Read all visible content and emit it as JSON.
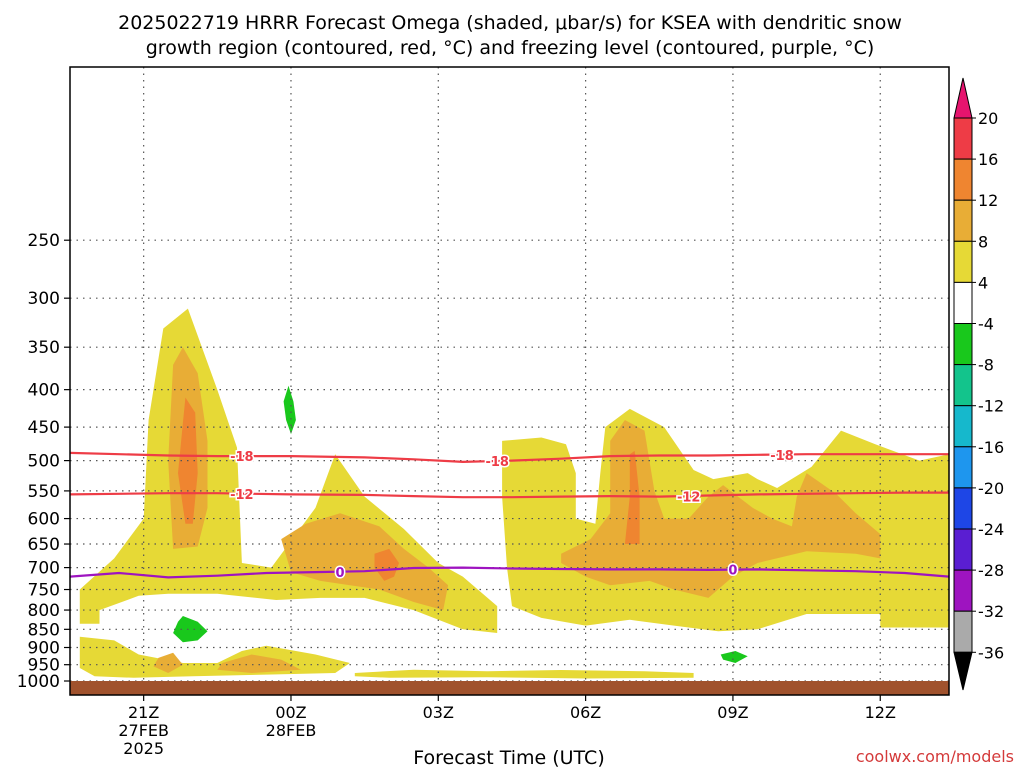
{
  "chart_data": {
    "type": "heatmap",
    "title_lines": [
      "2025022719 HRRR Forecast Omega (shaded, μbar/s) for KSEA with dendritic snow",
      "growth region (contoured, red, °C) and freezing level (contoured, purple, °C)"
    ],
    "xlabel": "Forecast Time (UTC)",
    "ylabel": "",
    "credit": "coolwx.com/models",
    "x_domain_hours": [
      -4.5,
      13.4
    ],
    "y_domain_hpa": [
      145,
      1045
    ],
    "y_scale": "log",
    "grid": true,
    "x_ticks": [
      {
        "hour": -3,
        "lines": [
          "21Z",
          "27FEB",
          "2025"
        ]
      },
      {
        "hour": 0,
        "lines": [
          "00Z",
          "28FEB"
        ]
      },
      {
        "hour": 3,
        "lines": [
          "03Z"
        ]
      },
      {
        "hour": 6,
        "lines": [
          "06Z"
        ]
      },
      {
        "hour": 9,
        "lines": [
          "09Z"
        ]
      },
      {
        "hour": 12,
        "lines": [
          "12Z"
        ]
      }
    ],
    "y_ticks": [
      250,
      300,
      350,
      400,
      450,
      500,
      550,
      600,
      650,
      700,
      750,
      800,
      850,
      900,
      950,
      1000
    ],
    "surface_color": "#a0522d",
    "colorbar": {
      "labels": [
        "20",
        "16",
        "12",
        "8",
        "4",
        "-4",
        "-8",
        "-12",
        "-16",
        "-20",
        "-24",
        "-28",
        "-32",
        "-36"
      ],
      "bins": [
        {
          "color": "#ee3c46"
        },
        {
          "color": "#ef8530"
        },
        {
          "color": "#e8ad36"
        },
        {
          "color": "#e6d936"
        },
        {
          "color": "#ffffff"
        },
        {
          "color": "#19c81c"
        },
        {
          "color": "#13c48c"
        },
        {
          "color": "#16b8cc"
        },
        {
          "color": "#1e96ee"
        },
        {
          "color": "#1e46e6"
        },
        {
          "color": "#5a1ed2"
        },
        {
          "color": "#9e14c0"
        },
        {
          "color": "#aaaaaa"
        }
      ],
      "top_arrow_color": "#e6146e",
      "bottom_arrow_color": "#000000"
    },
    "omega_regions": [
      {
        "color": "#e6d936",
        "points": [
          [
            -2.9,
            440
          ],
          [
            -2.6,
            330
          ],
          [
            -2.1,
            310
          ],
          [
            -1.5,
            400
          ],
          [
            -1.1,
            480
          ],
          [
            -1.0,
            690
          ],
          [
            -0.4,
            700
          ],
          [
            0.5,
            580
          ],
          [
            0.9,
            490
          ],
          [
            1.5,
            560
          ],
          [
            2.3,
            620
          ],
          [
            3.0,
            690
          ],
          [
            3.5,
            720
          ],
          [
            4.2,
            790
          ],
          [
            4.2,
            860
          ],
          [
            3.5,
            850
          ],
          [
            2.5,
            800
          ],
          [
            1.5,
            770
          ],
          [
            0.6,
            770
          ],
          [
            -0.3,
            775
          ],
          [
            -1.5,
            760
          ],
          [
            -2.5,
            760
          ],
          [
            -3.1,
            765
          ],
          [
            -3.9,
            800
          ],
          [
            -3.9,
            835
          ],
          [
            -4.3,
            835
          ],
          [
            -4.3,
            750
          ],
          [
            -3.6,
            680
          ],
          [
            -3.0,
            600
          ]
        ]
      },
      {
        "color": "#e6d936",
        "points": [
          [
            -4.3,
            870
          ],
          [
            -3.6,
            880
          ],
          [
            -3.1,
            920
          ],
          [
            -2.2,
            945
          ],
          [
            -1.5,
            945
          ],
          [
            -1.0,
            910
          ],
          [
            -0.5,
            895
          ],
          [
            0.5,
            920
          ],
          [
            1.2,
            945
          ],
          [
            0.9,
            975
          ],
          [
            -0.5,
            980
          ],
          [
            -2.0,
            985
          ],
          [
            -3.2,
            990
          ],
          [
            -4.0,
            985
          ],
          [
            -4.3,
            960
          ]
        ]
      },
      {
        "color": "#e6d936",
        "points": [
          [
            1.3,
            975
          ],
          [
            2.5,
            965
          ],
          [
            4.0,
            970
          ],
          [
            5.5,
            966
          ],
          [
            7.2,
            970
          ],
          [
            8.2,
            975
          ],
          [
            8.2,
            990
          ],
          [
            6.0,
            992
          ],
          [
            4.0,
            988
          ],
          [
            2.0,
            990
          ],
          [
            1.3,
            985
          ]
        ]
      },
      {
        "color": "#e6d936",
        "points": [
          [
            4.3,
            470
          ],
          [
            5.1,
            465
          ],
          [
            5.6,
            475
          ],
          [
            5.8,
            520
          ],
          [
            5.8,
            600
          ],
          [
            6.2,
            610
          ],
          [
            6.3,
            520
          ],
          [
            6.4,
            450
          ],
          [
            6.9,
            425
          ],
          [
            7.6,
            450
          ],
          [
            8.2,
            515
          ],
          [
            8.6,
            530
          ],
          [
            9.3,
            520
          ],
          [
            9.5,
            530
          ],
          [
            9.9,
            545
          ],
          [
            10.6,
            510
          ],
          [
            11.2,
            455
          ],
          [
            11.9,
            475
          ],
          [
            12.8,
            500
          ],
          [
            13.4,
            490
          ],
          [
            13.4,
            845
          ],
          [
            12.0,
            845
          ],
          [
            12.0,
            810
          ],
          [
            10.5,
            810
          ],
          [
            9.5,
            850
          ],
          [
            8.7,
            855
          ],
          [
            7.8,
            840
          ],
          [
            6.9,
            825
          ],
          [
            6.0,
            840
          ],
          [
            5.1,
            820
          ],
          [
            4.5,
            790
          ],
          [
            4.4,
            700
          ],
          [
            4.3,
            560
          ]
        ]
      },
      {
        "color": "#e8ad36",
        "points": [
          [
            -2.4,
            660
          ],
          [
            -2.5,
            500
          ],
          [
            -2.4,
            370
          ],
          [
            -2.2,
            350
          ],
          [
            -1.9,
            380
          ],
          [
            -1.7,
            470
          ],
          [
            -1.7,
            580
          ],
          [
            -1.9,
            655
          ]
        ]
      },
      {
        "color": "#e8ad36",
        "points": [
          [
            -0.2,
            640
          ],
          [
            0.3,
            610
          ],
          [
            1.0,
            590
          ],
          [
            1.8,
            615
          ],
          [
            2.3,
            660
          ],
          [
            2.8,
            700
          ],
          [
            3.2,
            740
          ],
          [
            3.1,
            800
          ],
          [
            2.5,
            780
          ],
          [
            1.8,
            750
          ],
          [
            1.2,
            740
          ],
          [
            0.6,
            730
          ],
          [
            0.0,
            710
          ]
        ]
      },
      {
        "color": "#e8ad36",
        "points": [
          [
            -2.7,
            930
          ],
          [
            -2.4,
            915
          ],
          [
            -2.2,
            950
          ],
          [
            -2.5,
            975
          ],
          [
            -2.8,
            955
          ]
        ]
      },
      {
        "color": "#e8ad36",
        "points": [
          [
            -1.4,
            945
          ],
          [
            -0.8,
            920
          ],
          [
            -0.2,
            935
          ],
          [
            0.2,
            965
          ],
          [
            -0.8,
            975
          ],
          [
            -1.5,
            965
          ]
        ]
      },
      {
        "color": "#e8ad36",
        "points": [
          [
            5.5,
            670
          ],
          [
            6.1,
            640
          ],
          [
            6.5,
            590
          ],
          [
            6.5,
            470
          ],
          [
            6.8,
            440
          ],
          [
            7.2,
            455
          ],
          [
            7.4,
            550
          ],
          [
            7.6,
            600
          ],
          [
            8.1,
            600
          ],
          [
            8.5,
            560
          ],
          [
            8.8,
            540
          ],
          [
            9.4,
            580
          ],
          [
            9.8,
            600
          ],
          [
            10.2,
            615
          ],
          [
            10.3,
            560
          ],
          [
            10.5,
            520
          ],
          [
            11.1,
            555
          ],
          [
            11.5,
            590
          ],
          [
            12.0,
            630
          ],
          [
            12.0,
            680
          ],
          [
            11.5,
            670
          ],
          [
            10.5,
            665
          ],
          [
            9.5,
            690
          ],
          [
            9.0,
            720
          ],
          [
            8.5,
            770
          ],
          [
            7.8,
            750
          ],
          [
            7.3,
            730
          ],
          [
            6.5,
            740
          ],
          [
            6.0,
            720
          ],
          [
            5.5,
            690
          ]
        ]
      },
      {
        "color": "#ef8530",
        "points": [
          [
            -2.15,
            610
          ],
          [
            -2.3,
            520
          ],
          [
            -2.15,
            410
          ],
          [
            -1.95,
            430
          ],
          [
            -1.9,
            520
          ],
          [
            -2.0,
            610
          ]
        ]
      },
      {
        "color": "#ef8530",
        "points": [
          [
            1.7,
            670
          ],
          [
            2.0,
            660
          ],
          [
            2.2,
            690
          ],
          [
            2.1,
            720
          ],
          [
            1.9,
            730
          ],
          [
            1.7,
            700
          ]
        ]
      },
      {
        "color": "#ef8530",
        "points": [
          [
            6.8,
            650
          ],
          [
            6.9,
            560
          ],
          [
            6.9,
            490
          ],
          [
            7.0,
            485
          ],
          [
            7.1,
            560
          ],
          [
            7.1,
            650
          ]
        ]
      },
      {
        "color": "#19c81c",
        "points": [
          [
            -2.2,
            815
          ],
          [
            -1.9,
            830
          ],
          [
            -1.7,
            855
          ],
          [
            -1.9,
            880
          ],
          [
            -2.2,
            885
          ],
          [
            -2.4,
            860
          ],
          [
            -2.3,
            830
          ]
        ]
      },
      {
        "color": "#19c81c",
        "points": [
          [
            -0.05,
            395
          ],
          [
            0.05,
            415
          ],
          [
            0.1,
            440
          ],
          [
            0.0,
            460
          ],
          [
            -0.1,
            440
          ],
          [
            -0.15,
            415
          ]
        ]
      },
      {
        "color": "#19c81c",
        "points": [
          [
            8.75,
            920
          ],
          [
            9.05,
            910
          ],
          [
            9.3,
            925
          ],
          [
            9.05,
            945
          ],
          [
            8.8,
            935
          ]
        ]
      }
    ],
    "contours": [
      {
        "label": "-18",
        "color": "#ee3c46",
        "label_at": [
          -1.0,
          493
        ],
        "points": [
          [
            -4.5,
            488
          ],
          [
            -3.5,
            490
          ],
          [
            -2.5,
            492
          ],
          [
            -1.5,
            493
          ],
          [
            0.0,
            493
          ],
          [
            1.5,
            495
          ],
          [
            2.5,
            498
          ],
          [
            3.5,
            502
          ],
          [
            4.5,
            500
          ],
          [
            5.5,
            497
          ],
          [
            6.5,
            493
          ],
          [
            7.5,
            492
          ],
          [
            8.5,
            492
          ],
          [
            9.5,
            491
          ],
          [
            10.5,
            490
          ],
          [
            11.5,
            490
          ],
          [
            12.5,
            490
          ],
          [
            13.4,
            490
          ]
        ]
      },
      {
        "label": "-18",
        "color": "#ee3c46",
        "label_at": [
          4.2,
          501
        ],
        "points": []
      },
      {
        "label": "-18",
        "color": "#ee3c46",
        "label_at": [
          10.0,
          491
        ],
        "points": []
      },
      {
        "label": "-12",
        "color": "#ee3c46",
        "label_at": [
          -1.0,
          555
        ],
        "points": [
          [
            -4.5,
            556
          ],
          [
            -3.5,
            555
          ],
          [
            -2.5,
            554
          ],
          [
            -1.5,
            554
          ],
          [
            0.0,
            556
          ],
          [
            1.5,
            557
          ],
          [
            2.5,
            559
          ],
          [
            3.5,
            561
          ],
          [
            4.5,
            561
          ],
          [
            5.5,
            560
          ],
          [
            6.5,
            559
          ],
          [
            7.5,
            560
          ],
          [
            8.5,
            558
          ],
          [
            9.5,
            556
          ],
          [
            10.5,
            555
          ],
          [
            11.5,
            554
          ],
          [
            12.5,
            553
          ],
          [
            13.4,
            553
          ]
        ]
      },
      {
        "label": "-12",
        "color": "#ee3c46",
        "label_at": [
          8.1,
          560
        ],
        "points": []
      },
      {
        "label": "0",
        "color": "#9e14c0",
        "label_at": [
          1.0,
          710
        ],
        "points": [
          [
            -4.5,
            720
          ],
          [
            -3.5,
            712
          ],
          [
            -2.5,
            722
          ],
          [
            -1.5,
            718
          ],
          [
            -0.5,
            712
          ],
          [
            0.5,
            710
          ],
          [
            1.5,
            708
          ],
          [
            2.5,
            701
          ],
          [
            3.5,
            700
          ],
          [
            4.5,
            702
          ],
          [
            5.5,
            703
          ],
          [
            6.5,
            704
          ],
          [
            7.5,
            704
          ],
          [
            8.5,
            705
          ],
          [
            9.5,
            704
          ],
          [
            10.5,
            706
          ],
          [
            11.5,
            708
          ],
          [
            12.5,
            712
          ],
          [
            13.4,
            720
          ]
        ]
      },
      {
        "label": "0",
        "color": "#9e14c0",
        "label_at": [
          9.0,
          704
        ],
        "points": []
      }
    ]
  }
}
